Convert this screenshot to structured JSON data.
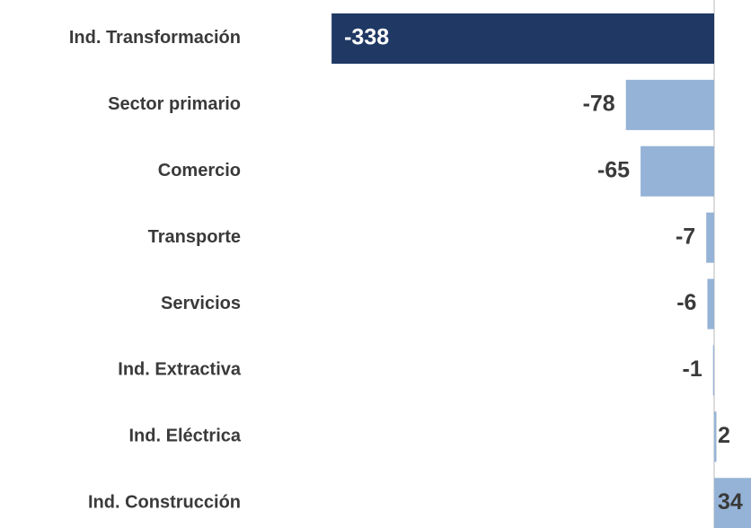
{
  "chart_data": {
    "type": "barh",
    "categories": [
      "Ind. Transformación",
      "Sector primario",
      "Comercio",
      "Transporte",
      "Servicios",
      "Ind. Extractiva",
      "Ind. Eléctrica",
      "Ind. Construcción"
    ],
    "values": [
      -338,
      -78,
      -65,
      -7,
      -6,
      -1,
      2,
      34
    ],
    "colors": [
      "#1f3864",
      "#95b3d7",
      "#95b3d7",
      "#95b3d7",
      "#95b3d7",
      "#95b3d7",
      "#95b3d7",
      "#95b3d7"
    ]
  }
}
